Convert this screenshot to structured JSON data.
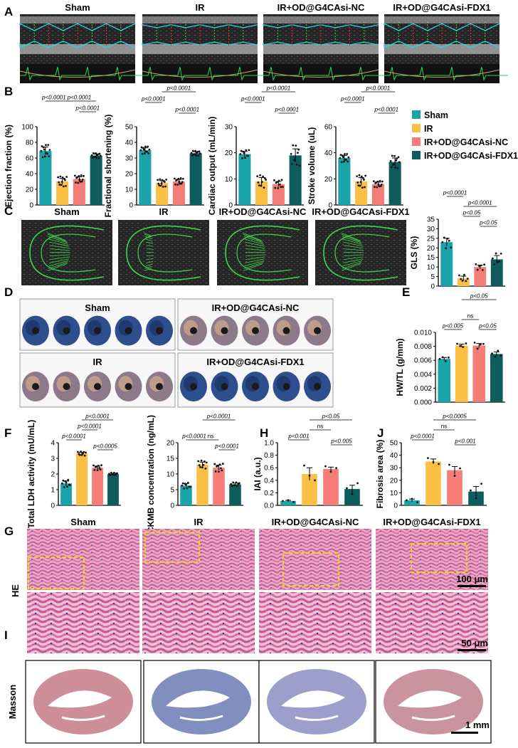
{
  "panels": {
    "A": "A",
    "B": "B",
    "C": "C",
    "D": "D",
    "E": "E",
    "F": "F",
    "G": "G",
    "H": "H",
    "I": "I",
    "J": "J"
  },
  "groups": [
    "Sham",
    "IR",
    "IR+OD@G4CAsi-NC",
    "IR+OD@G4CAsi-FDX1"
  ],
  "colors": [
    "#1aa3a8",
    "#fbbf45",
    "#f47d78",
    "#0f5c5e"
  ],
  "stain_labels": {
    "he": "HE",
    "masson": "Masson"
  },
  "scale_bars": {
    "he_top": "100 μm",
    "he_bottom": "50 μm",
    "masson": "1 mm"
  },
  "tissue_titles": {
    "sham": "Sham",
    "ir": "IR"
  },
  "chart_data": [
    {
      "id": "ef",
      "type": "bar",
      "ylabel": "Ejection fraction (%)",
      "ylim": [
        0,
        100
      ],
      "yticks": [
        0,
        20,
        40,
        60,
        80,
        100
      ],
      "categories": [
        "Sham",
        "IR",
        "IR+OD@G4CAsi-NC",
        "IR+OD@G4CAsi-FDX1"
      ],
      "values": [
        69,
        30,
        33,
        63
      ],
      "errors": [
        5,
        4,
        3,
        2
      ],
      "comparisons": [
        {
          "a": 0,
          "b": 1,
          "label": "p<0.0001"
        },
        {
          "a": 1,
          "b": 3,
          "label": "p<0.0001"
        },
        {
          "a": 2,
          "b": 3,
          "label": "p<0.0001"
        }
      ]
    },
    {
      "id": "fs",
      "type": "bar",
      "ylabel": "Fractional shortening (%)",
      "ylim": [
        0,
        50
      ],
      "yticks": [
        0,
        10,
        20,
        30,
        40,
        50
      ],
      "categories": [
        "Sham",
        "IR",
        "IR+OD@G4CAsi-NC",
        "IR+OD@G4CAsi-FDX1"
      ],
      "values": [
        35,
        14,
        15,
        33
      ],
      "errors": [
        1.5,
        1.5,
        1.3,
        1
      ],
      "comparisons": [
        {
          "a": 0,
          "b": 1,
          "label": "p<0.0001"
        },
        {
          "a": 1,
          "b": 3,
          "label": "p<0.0001"
        },
        {
          "a": 2,
          "b": 3,
          "label": "p<0.0001"
        }
      ]
    },
    {
      "id": "co",
      "type": "bar",
      "ylabel": "Cardiac output (mL/min)",
      "ylim": [
        0,
        30
      ],
      "yticks": [
        0,
        10,
        20,
        30
      ],
      "categories": [
        "Sham",
        "IR",
        "IR+OD@G4CAsi-NC",
        "IR+OD@G4CAsi-FDX1"
      ],
      "values": [
        19.5,
        9,
        8,
        19
      ],
      "errors": [
        1,
        1.5,
        1,
        2.5
      ],
      "comparisons": [
        {
          "a": 0,
          "b": 1,
          "label": "p<0.0001"
        },
        {
          "a": 1,
          "b": 3,
          "label": "p<0.0001"
        },
        {
          "a": 2,
          "b": 3,
          "label": "p<0.0001"
        }
      ]
    },
    {
      "id": "sv",
      "type": "bar",
      "ylabel": "Stroke volume (uL)",
      "ylim": [
        0,
        60
      ],
      "yticks": [
        0,
        20,
        40,
        60
      ],
      "categories": [
        "Sham",
        "IR",
        "IR+OD@G4CAsi-NC",
        "IR+OD@G4CAsi-FDX1"
      ],
      "values": [
        36,
        18,
        16,
        33
      ],
      "errors": [
        2,
        3,
        1.5,
        3
      ],
      "comparisons": [
        {
          "a": 0,
          "b": 1,
          "label": "p<0.0001"
        },
        {
          "a": 1,
          "b": 3,
          "label": "p<0.0001"
        },
        {
          "a": 2,
          "b": 3,
          "label": "p<0.0001"
        }
      ]
    },
    {
      "id": "gls",
      "type": "bar",
      "ylabel": "GLS (%)",
      "ylim": [
        0,
        35
      ],
      "yticks": [
        0,
        5,
        10,
        15,
        20,
        25,
        30,
        35
      ],
      "categories": [
        "Sham",
        "IR",
        "IR+OD@G4CAsi-NC",
        "IR+OD@G4CAsi-FDX1"
      ],
      "values": [
        23,
        4,
        10,
        14
      ],
      "errors": [
        2,
        1.2,
        1,
        2
      ],
      "comparisons": [
        {
          "a": 0,
          "b": 1,
          "label": "p<0.0001"
        },
        {
          "a": 1,
          "b": 3,
          "label": "p<0.0001"
        },
        {
          "a": 1,
          "b": 2,
          "label": "p<0.05"
        },
        {
          "a": 2,
          "b": 3,
          "label": "p<0.05"
        }
      ]
    },
    {
      "id": "hwtl",
      "type": "bar",
      "ylabel": "HW/TL (g/mm)",
      "ylim": [
        0,
        0.01
      ],
      "yticks": [
        "0.000",
        "0.002",
        "0.004",
        "0.006",
        "0.008",
        "0.010"
      ],
      "categories": [
        "Sham",
        "IR",
        "IR+OD@G4CAsi-NC",
        "IR+OD@G4CAsi-FDX1"
      ],
      "values": [
        0.0062,
        0.0081,
        0.0081,
        0.0069
      ],
      "errors": [
        0.0002,
        0.0002,
        0.0003,
        0.0003
      ],
      "comparisons": [
        {
          "a": 0,
          "b": 1,
          "label": "p<0.005"
        },
        {
          "a": 1,
          "b": 2,
          "label": "ns"
        },
        {
          "a": 1,
          "b": 3,
          "label": "p<0.05"
        },
        {
          "a": 2,
          "b": 3,
          "label": "p<0.05"
        }
      ]
    },
    {
      "id": "ldh",
      "type": "bar",
      "ylabel": "Total LDH activity (mU/mL)",
      "ylim": [
        0,
        4
      ],
      "yticks": [
        0,
        1,
        2,
        3,
        4
      ],
      "categories": [
        "Sham",
        "IR",
        "IR+OD@G4CAsi-NC",
        "IR+OD@G4CAsi-FDX1"
      ],
      "values": [
        1.4,
        3.3,
        2.4,
        2.0
      ],
      "errors": [
        0.15,
        0.08,
        0.1,
        0.05
      ],
      "comparisons": [
        {
          "a": 0,
          "b": 1,
          "label": "p<0.0001"
        },
        {
          "a": 1,
          "b": 2,
          "label": "p<0.0001"
        },
        {
          "a": 1,
          "b": 3,
          "label": "p<0.0001"
        },
        {
          "a": 2,
          "b": 3,
          "label": "p<0.0005"
        }
      ]
    },
    {
      "id": "ckmb",
      "type": "bar",
      "ylabel": "CKMB concentration (ng/mL)",
      "ylim": [
        0,
        20
      ],
      "yticks": [
        0,
        5,
        10,
        15,
        20
      ],
      "categories": [
        "Sham",
        "IR",
        "IR+OD@G4CAsi-NC",
        "IR+OD@G4CAsi-FDX1"
      ],
      "values": [
        6.3,
        13,
        12,
        6.7
      ],
      "errors": [
        0.6,
        0.8,
        0.8,
        0.4
      ],
      "comparisons": [
        {
          "a": 0,
          "b": 1,
          "label": "p<0.0001"
        },
        {
          "a": 1,
          "b": 2,
          "label": "ns"
        },
        {
          "a": 1,
          "b": 3,
          "label": "p<0.0001"
        },
        {
          "a": 2,
          "b": 3,
          "label": "p<0.0001"
        }
      ]
    },
    {
      "id": "iai",
      "type": "bar",
      "ylabel": "IAI (a.u.)",
      "ylim": [
        0,
        1.0
      ],
      "yticks": [
        "0.0",
        "0.2",
        "0.4",
        "0.6",
        "0.8",
        "1.0"
      ],
      "categories": [
        "Sham",
        "IR",
        "IR+OD@G4CAsi-NC",
        "IR+OD@G4CAsi-FDX1"
      ],
      "values": [
        0.07,
        0.5,
        0.58,
        0.26
      ],
      "errors": [
        0.01,
        0.1,
        0.03,
        0.06
      ],
      "comparisons": [
        {
          "a": 0,
          "b": 1,
          "label": "p<0.001"
        },
        {
          "a": 1,
          "b": 2,
          "label": "ns"
        },
        {
          "a": 1,
          "b": 3,
          "label": "p<0.05"
        },
        {
          "a": 2,
          "b": 3,
          "label": "p<0.005"
        }
      ]
    },
    {
      "id": "fib",
      "type": "bar",
      "ylabel": "Fibrosis area (%)",
      "ylim": [
        0,
        50
      ],
      "yticks": [
        0,
        10,
        20,
        30,
        40,
        50
      ],
      "categories": [
        "Sham",
        "IR",
        "IR+OD@G4CAsi-NC",
        "IR+OD@G4CAsi-FDX1"
      ],
      "values": [
        4,
        35,
        28,
        11
      ],
      "errors": [
        1,
        2,
        3,
        4
      ],
      "comparisons": [
        {
          "a": 0,
          "b": 1,
          "label": "p<0.0001"
        },
        {
          "a": 1,
          "b": 2,
          "label": "ns"
        },
        {
          "a": 1,
          "b": 3,
          "label": "p<0.0005"
        },
        {
          "a": 2,
          "b": 3,
          "label": "p<0.001"
        }
      ]
    }
  ]
}
